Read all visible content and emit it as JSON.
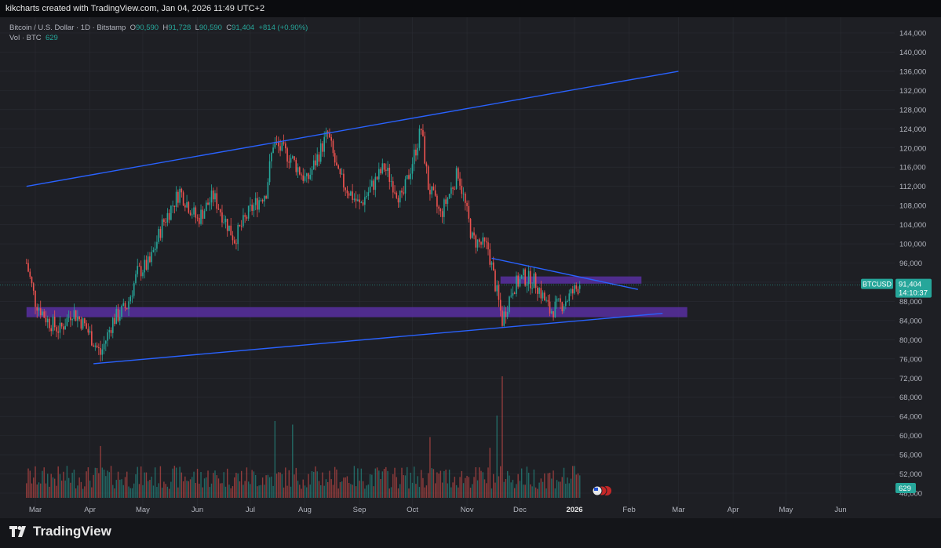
{
  "header": {
    "caption": "kikcharts created with TradingView.com, Jan 04, 2026 11:49 UTC+2"
  },
  "legend": {
    "symbol": "Bitcoin / U.S. Dollar · 1D · Bitstamp",
    "open_label": "O",
    "open": "90,590",
    "high_label": "H",
    "high": "91,728",
    "low_label": "L",
    "low": "90,590",
    "close_label": "C",
    "close": "91,404",
    "change": "+814 (+0.90%)",
    "volume_label": "Vol · BTC",
    "volume": "629"
  },
  "price_tag": {
    "symbol": "BTCUSD",
    "price": "91,404",
    "countdown": "14:10:37"
  },
  "volume_tag": "629",
  "brand": {
    "name": "TradingView"
  },
  "colors": {
    "up": "#26a69a",
    "down": "#ef5350",
    "trendline": "#2962ff",
    "zone": "#5b2fa8",
    "background": "#1e1f24"
  },
  "chart_data": {
    "type": "candlestick",
    "title": "Bitcoin / U.S. Dollar · 1D · Bitstamp",
    "y_axis": {
      "side": "right",
      "min": 46000,
      "max": 146000,
      "ticks": [
        48000,
        52000,
        56000,
        60000,
        64000,
        68000,
        72000,
        76000,
        80000,
        84000,
        88000,
        92000,
        96000,
        100000,
        104000,
        108000,
        112000,
        116000,
        120000,
        124000,
        128000,
        132000,
        136000,
        140000,
        144000
      ]
    },
    "x_axis": {
      "ticks": [
        "Mar",
        "Apr",
        "May",
        "Jun",
        "Jul",
        "Aug",
        "Sep",
        "Oct",
        "Nov",
        "Dec",
        "2026",
        "Feb",
        "Mar",
        "Apr",
        "May",
        "Jun"
      ]
    },
    "price_path": [
      [
        "2025-02-24",
        96000
      ],
      [
        "2025-03-01",
        88000
      ],
      [
        "2025-03-08",
        84000
      ],
      [
        "2025-03-15",
        82000
      ],
      [
        "2025-03-22",
        86000
      ],
      [
        "2025-03-29",
        83000
      ],
      [
        "2025-04-07",
        77000
      ],
      [
        "2025-04-14",
        84000
      ],
      [
        "2025-04-22",
        87000
      ],
      [
        "2025-04-28",
        94000
      ],
      [
        "2025-05-05",
        96000
      ],
      [
        "2025-05-12",
        104000
      ],
      [
        "2025-05-22",
        111000
      ],
      [
        "2025-06-01",
        105000
      ],
      [
        "2025-06-10",
        110000
      ],
      [
        "2025-06-22",
        101000
      ],
      [
        "2025-07-01",
        107000
      ],
      [
        "2025-07-10",
        111000
      ],
      [
        "2025-07-14",
        121000
      ],
      [
        "2025-07-24",
        118000
      ],
      [
        "2025-08-02",
        113000
      ],
      [
        "2025-08-14",
        123000
      ],
      [
        "2025-08-20",
        114000
      ],
      [
        "2025-09-01",
        108000
      ],
      [
        "2025-09-15",
        116000
      ],
      [
        "2025-09-25",
        109000
      ],
      [
        "2025-10-06",
        124000
      ],
      [
        "2025-10-10",
        112000
      ],
      [
        "2025-10-17",
        106000
      ],
      [
        "2025-10-27",
        115000
      ],
      [
        "2025-11-04",
        101000
      ],
      [
        "2025-11-13",
        99000
      ],
      [
        "2025-11-21",
        84000
      ],
      [
        "2025-11-27",
        91000
      ],
      [
        "2025-12-03",
        93000
      ],
      [
        "2025-12-10",
        92000
      ],
      [
        "2025-12-18",
        86000
      ],
      [
        "2025-12-25",
        87500
      ],
      [
        "2026-01-04",
        91404
      ]
    ],
    "volume_max_btc": 3400,
    "volume_spikes": [
      [
        "2025-04-07",
        1450
      ],
      [
        "2025-07-15",
        2150
      ],
      [
        "2025-07-25",
        2050
      ],
      [
        "2025-11-14",
        1400
      ],
      [
        "2025-11-21",
        3400
      ],
      [
        "2025-11-18",
        2300
      ],
      [
        "2025-10-11",
        1700
      ]
    ],
    "trendlines": [
      {
        "from": [
          "2025-02-24",
          112000
        ],
        "to": [
          "2026-03-01",
          136000
        ]
      },
      {
        "from": [
          "2025-04-03",
          75000
        ],
        "to": [
          "2026-02-20",
          85500
        ]
      },
      {
        "from": [
          "2025-11-15",
          97000
        ],
        "to": [
          "2026-02-06",
          90500
        ]
      }
    ],
    "zones": [
      {
        "from": "2025-02-24",
        "to": "2026-03-06",
        "low": 84700,
        "high": 86800
      },
      {
        "from": "2025-11-20",
        "to": "2026-02-08",
        "low": 91700,
        "high": 93200
      }
    ],
    "last_price": 91404
  }
}
